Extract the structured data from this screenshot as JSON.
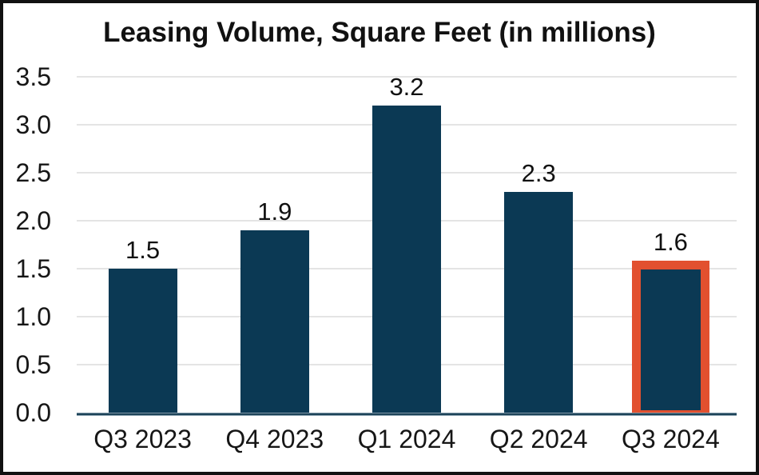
{
  "chart_data": {
    "type": "bar",
    "title": "Leasing Volume, Square Feet (in millions)",
    "categories": [
      "Q3 2023",
      "Q4 2023",
      "Q1 2024",
      "Q2 2024",
      "Q3 2024"
    ],
    "values": [
      1.5,
      1.9,
      3.2,
      2.3,
      1.6
    ],
    "data_labels": [
      "1.5",
      "1.9",
      "3.2",
      "2.3",
      "1.6"
    ],
    "y_tick_labels": [
      "0.0",
      "0.5",
      "1.0",
      "1.5",
      "2.0",
      "2.5",
      "3.0",
      "3.5"
    ],
    "ylim": [
      0,
      3.5
    ],
    "y_tick_step": 0.5,
    "xlabel": "",
    "ylabel": "",
    "grid": "horizontal",
    "legend": "none",
    "highlight_index": 4,
    "highlighted_category": "Q3 2024",
    "colors": {
      "bar_fill": "#0B3954",
      "highlight_border": "#E2502F",
      "gridline": "#E4E4E4",
      "axis_line_dark": "#1C4258",
      "axis_line_light": "#7F98A7",
      "text": "#111111",
      "background": "#FFFFFF",
      "frame_border": "#111111"
    }
  }
}
